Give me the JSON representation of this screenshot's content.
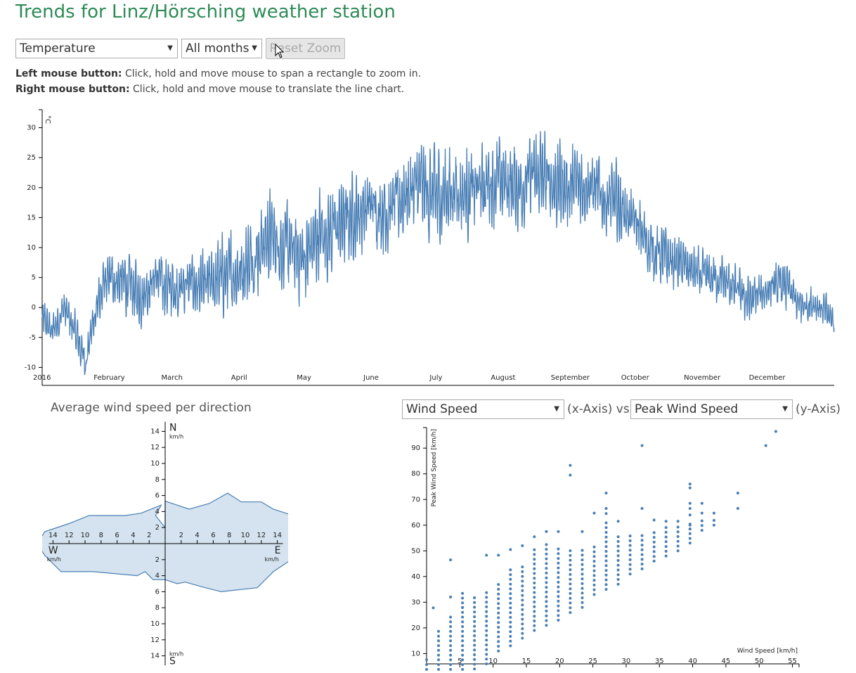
{
  "page": {
    "title": "Trends for Linz/Hörsching weather station",
    "controls": {
      "measure_select": "Temperature",
      "month_select": "All months",
      "reset_zoom": "Reset Zoom"
    },
    "instructions": {
      "left_label": "Left mouse button:",
      "left_text": " Click, hold and move mouse to span a rectangle to zoom in.",
      "right_label": "Right mouse button:",
      "right_text": " Click, hold and move mouse to translate the line chart."
    }
  },
  "wind_panel": {
    "title": "Average wind speed per direction"
  },
  "scatter_panel": {
    "x_select": "Wind Speed",
    "x_suffix": "(x-Axis) vs.",
    "y_select": "Peak Wind Speed",
    "y_suffix": "(y-Axis)"
  },
  "icons": {
    "dropdown": "chevron-down-icon",
    "cursor": "mouse-pointer-icon"
  },
  "colors": {
    "title": "#2e8b57",
    "line": "#4a7fb5",
    "polygon_fill": "#d4e3ef",
    "polygon_stroke": "#4a7fb5",
    "scatter": "#4a7fb5"
  },
  "chart_data": [
    {
      "type": "line",
      "ylabel": "°C",
      "yticks": [
        -10,
        -5,
        0,
        5,
        10,
        15,
        20,
        25,
        30
      ],
      "ylim": [
        -13,
        33
      ],
      "x_tick_labels": [
        "2016",
        "February",
        "March",
        "April",
        "May",
        "June",
        "July",
        "August",
        "September",
        "October",
        "November",
        "December"
      ],
      "x_range_days": [
        0,
        366
      ],
      "series": [
        {
          "x_days": [
            0,
            5,
            10,
            15,
            20,
            25,
            31,
            38,
            45,
            52,
            60,
            68,
            75,
            82,
            91,
            98,
            105,
            112,
            121,
            128,
            135,
            142,
            152,
            160,
            168,
            175,
            182,
            190,
            198,
            205,
            213,
            220,
            228,
            235,
            244,
            252,
            260,
            267,
            274,
            281,
            289,
            297,
            305,
            312,
            320,
            327,
            335,
            343,
            350,
            357,
            365
          ],
          "y_mean": [
            -2,
            -4,
            0,
            -4,
            -9,
            0,
            5,
            4,
            2,
            5,
            3,
            4,
            3,
            5,
            6,
            9,
            12,
            10,
            8,
            12,
            13,
            15,
            17,
            16,
            19,
            20,
            18,
            20,
            19,
            21,
            21,
            20,
            22,
            21,
            20,
            21,
            18,
            17,
            14,
            10,
            8,
            7,
            5,
            5,
            3,
            1,
            3,
            4,
            0,
            1,
            -2
          ],
          "y_amp": [
            3,
            3,
            3,
            4,
            3,
            4,
            4,
            5,
            5,
            5,
            5,
            5,
            5,
            6,
            6,
            7,
            7,
            7,
            7,
            7,
            7,
            7,
            7,
            7,
            7,
            8,
            8,
            7,
            7,
            7,
            7,
            7,
            7,
            7,
            7,
            6,
            6,
            6,
            5,
            5,
            5,
            4,
            4,
            4,
            4,
            4,
            3,
            4,
            3,
            3,
            3
          ],
          "y_min": -13,
          "y_max": 33
        }
      ]
    },
    {
      "type": "polar-area",
      "x_tick_labels": [
        "14",
        "12",
        "10",
        "8",
        "6",
        "4",
        "2",
        "2",
        "4",
        "6",
        "8",
        "10",
        "12",
        "14"
      ],
      "y_tick_labels": [
        "14",
        "12",
        "10",
        "8",
        "6",
        "4",
        "2",
        "2",
        "4",
        "6",
        "8",
        "10",
        "12",
        "14"
      ],
      "axis_labels": {
        "north": "N",
        "south": "S",
        "west": "W",
        "east": "E",
        "unit": "km/h"
      },
      "range": [
        0,
        15
      ],
      "points": [
        [
          0,
          5.3
        ],
        [
          3,
          4.3
        ],
        [
          5.5,
          5.0
        ],
        [
          7.8,
          6.3
        ],
        [
          9.5,
          5.2
        ],
        [
          12,
          5.2
        ],
        [
          13.5,
          4.3
        ],
        [
          16,
          3.5
        ],
        [
          16.5,
          2.5
        ],
        [
          17,
          0
        ],
        [
          16.5,
          -1.5
        ],
        [
          15,
          -2.5
        ],
        [
          13.5,
          -3.5
        ],
        [
          11.5,
          -5.5
        ],
        [
          7,
          -6.0
        ],
        [
          5,
          -5.5
        ],
        [
          2.5,
          -4.8
        ],
        [
          1.5,
          -5
        ],
        [
          0,
          -4.5
        ],
        [
          -1.5,
          -4.5
        ],
        [
          -2.5,
          -3.5
        ],
        [
          -3.5,
          -4.0
        ],
        [
          -9,
          -3.5
        ],
        [
          -13,
          -3.5
        ],
        [
          -15,
          -1.5
        ],
        [
          -16,
          0
        ],
        [
          -15,
          1.5
        ],
        [
          -12,
          2.5
        ],
        [
          -9.5,
          3.5
        ],
        [
          -5,
          3.5
        ],
        [
          -3,
          3.8
        ],
        [
          -0.5,
          4.8
        ],
        [
          -1.2,
          3.5
        ],
        [
          0,
          2.0
        ],
        [
          0,
          5.3
        ]
      ]
    },
    {
      "type": "scatter",
      "xlabel": "Wind Speed [km/h]",
      "ylabel": "Peak Wind Speed [km/h]",
      "xlim": [
        0,
        56
      ],
      "ylim": [
        6,
        98
      ],
      "xticks": [
        5,
        10,
        15,
        20,
        25,
        30,
        35,
        40,
        45,
        50,
        55
      ],
      "yticks": [
        10,
        20,
        30,
        40,
        50,
        60,
        70,
        80,
        90
      ],
      "columns": [
        {
          "x": 0,
          "y_from": 2,
          "y_to": 9
        },
        {
          "x": 1.8,
          "y_from": 2,
          "y_to": 20
        },
        {
          "x": 3.6,
          "y_from": 2,
          "y_to": 25
        },
        {
          "x": 5.4,
          "y_from": 2,
          "y_to": 35
        },
        {
          "x": 7.2,
          "y_from": 4,
          "y_to": 32
        },
        {
          "x": 9.0,
          "y_from": 6,
          "y_to": 35
        },
        {
          "x": 10.8,
          "y_from": 11,
          "y_to": 37
        },
        {
          "x": 12.6,
          "y_from": 13,
          "y_to": 43
        },
        {
          "x": 14.4,
          "y_from": 16,
          "y_to": 45
        },
        {
          "x": 16.2,
          "y_from": 19,
          "y_to": 51
        },
        {
          "x": 18.0,
          "y_from": 21,
          "y_to": 53
        },
        {
          "x": 19.8,
          "y_from": 23,
          "y_to": 52
        },
        {
          "x": 21.6,
          "y_from": 26,
          "y_to": 51
        },
        {
          "x": 23.4,
          "y_from": 28,
          "y_to": 52
        },
        {
          "x": 25.2,
          "y_from": 33,
          "y_to": 52
        },
        {
          "x": 27.0,
          "y_from": 35,
          "y_to": 61
        },
        {
          "x": 28.8,
          "y_from": 37,
          "y_to": 56
        },
        {
          "x": 30.6,
          "y_from": 41,
          "y_to": 57
        },
        {
          "x": 32.4,
          "y_from": 43,
          "y_to": 57
        },
        {
          "x": 34.2,
          "y_from": 46,
          "y_to": 58
        },
        {
          "x": 36.0,
          "y_from": 48,
          "y_to": 60
        },
        {
          "x": 37.8,
          "y_from": 50,
          "y_to": 60
        },
        {
          "x": 39.6,
          "y_from": 53,
          "y_to": 62
        },
        {
          "x": 41.4,
          "y_from": 58,
          "y_to": 62
        },
        {
          "x": 43.2,
          "y_from": 60,
          "y_to": 63
        }
      ],
      "points": [
        [
          1.0,
          27.8
        ],
        [
          3.6,
          32
        ],
        [
          3.6,
          46.5
        ],
        [
          5.4,
          28
        ],
        [
          9.0,
          48.3
        ],
        [
          10.8,
          48.3
        ],
        [
          12.6,
          50.5
        ],
        [
          14.4,
          52
        ],
        [
          16.2,
          55.5
        ],
        [
          18.0,
          57.5
        ],
        [
          19.8,
          57.5
        ],
        [
          23.4,
          57.5
        ],
        [
          21.6,
          79.5
        ],
        [
          21.6,
          83.3
        ],
        [
          25.2,
          64.7
        ],
        [
          27.0,
          72.5
        ],
        [
          27.0,
          66.5
        ],
        [
          27.0,
          64.5
        ],
        [
          28.8,
          61.5
        ],
        [
          32.4,
          66.5
        ],
        [
          32.4,
          91
        ],
        [
          34.2,
          62
        ],
        [
          36.0,
          61.5
        ],
        [
          37.8,
          61.5
        ],
        [
          39.6,
          58.5
        ],
        [
          39.6,
          60
        ],
        [
          39.6,
          64
        ],
        [
          39.6,
          66.5
        ],
        [
          39.6,
          68.5
        ],
        [
          39.6,
          74.5
        ],
        [
          39.6,
          76
        ],
        [
          41.4,
          64.7
        ],
        [
          41.4,
          68.5
        ],
        [
          43.2,
          64.7
        ],
        [
          46.8,
          66.5
        ],
        [
          46.8,
          72.5
        ],
        [
          51.0,
          91
        ],
        [
          52.5,
          96.5
        ]
      ]
    }
  ]
}
